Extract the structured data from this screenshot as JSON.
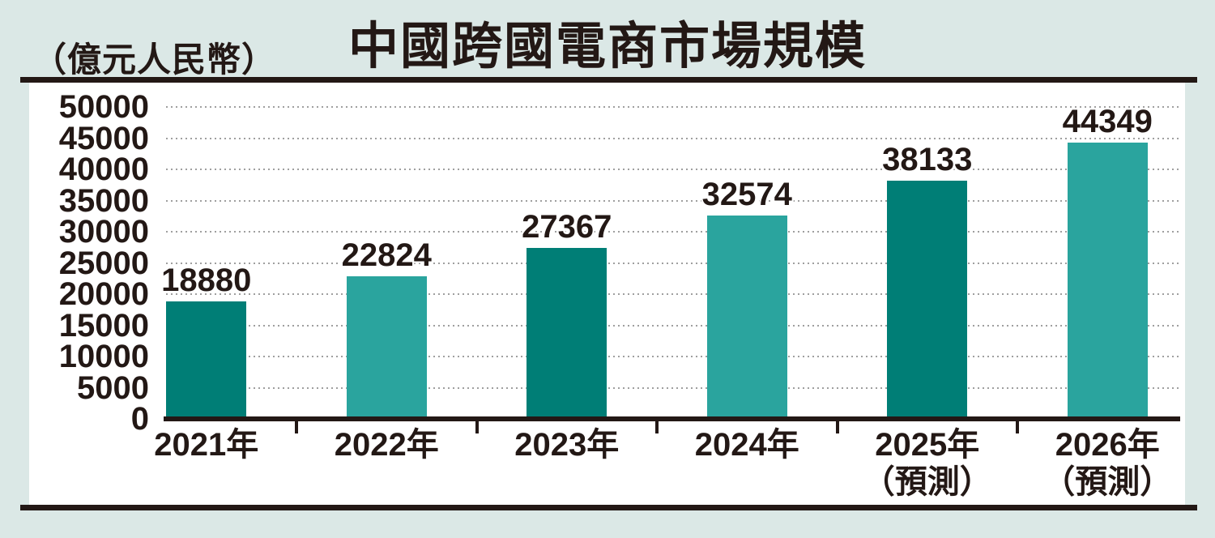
{
  "palette": {
    "background": "#dbe8e6",
    "panel_background": "#ffffff",
    "ink": "#231815",
    "grid_color": "#9f9f9f",
    "bar_dark": "#007E76",
    "bar_light": "#2AA49E"
  },
  "chart_data": {
    "type": "bar",
    "title": "中國跨國電商市場規模",
    "unit_label": "（億元人民幣）",
    "categories": [
      {
        "label": "2021年",
        "sublabel": ""
      },
      {
        "label": "2022年",
        "sublabel": ""
      },
      {
        "label": "2023年",
        "sublabel": ""
      },
      {
        "label": "2024年",
        "sublabel": ""
      },
      {
        "label": "2025年",
        "sublabel": "（預測）"
      },
      {
        "label": "2026年",
        "sublabel": "（預測）"
      }
    ],
    "values": [
      18880,
      22824,
      27367,
      32574,
      38133,
      44349
    ],
    "value_labels": [
      "18880",
      "22824",
      "27367",
      "32574",
      "38133",
      "44349"
    ],
    "bar_color_pattern": "alternating dark/light starting dark",
    "ylim": [
      0,
      50000
    ],
    "ytick_step": 5000,
    "yticks": [
      0,
      5000,
      10000,
      15000,
      20000,
      25000,
      30000,
      35000,
      40000,
      45000,
      50000
    ],
    "grid": "horizontal dotted lines at every y tick",
    "legend": "none"
  }
}
